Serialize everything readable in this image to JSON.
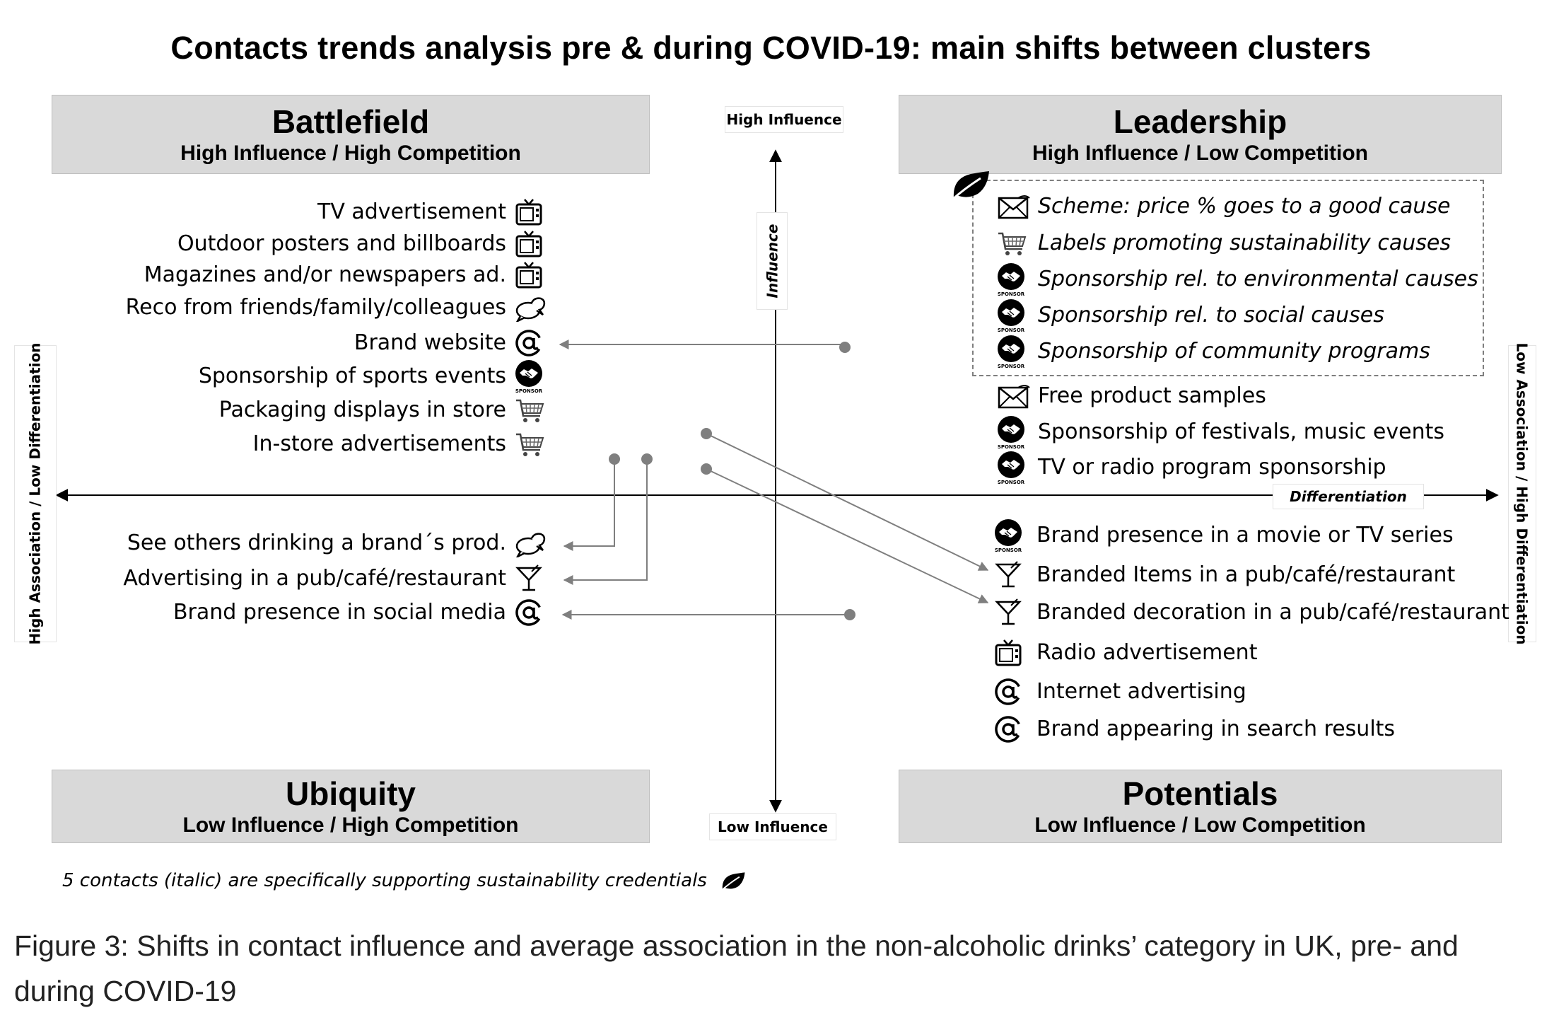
{
  "title": "Contacts trends analysis pre & during COVID-19: main shifts between clusters",
  "quadrants": {
    "battlefield": {
      "name": "Battlefield",
      "subtitle": "High Influence  / High Competition"
    },
    "leadership": {
      "name": "Leadership",
      "subtitle": "High Influence / Low Competition"
    },
    "ubiquity": {
      "name": "Ubiquity",
      "subtitle": "Low Influence  / High Competition"
    },
    "potentials": {
      "name": "Potentials",
      "subtitle": "Low Influence / Low Competition"
    }
  },
  "axes": {
    "top": "High Influence",
    "bottom": "Low Influence",
    "vertical": "Influence",
    "horizontal": "Differentiation",
    "left": "High Association / Low Differentiation",
    "right": "Low Association / High Differentiation"
  },
  "left_top_items": [
    {
      "label": "TV advertisement",
      "icon": "tv-icon"
    },
    {
      "label": "Outdoor posters and billboards",
      "icon": "tv-icon"
    },
    {
      "label": "Magazines and/or newspapers ad.",
      "icon": "tv-icon"
    },
    {
      "label": "Reco from friends/family/colleagues",
      "icon": "speech-bubbles-icon"
    },
    {
      "label": "Brand website",
      "icon": "at-icon"
    },
    {
      "label": "Sponsorship of sports events",
      "icon": "sponsor-icon"
    },
    {
      "label": "Packaging displays in store",
      "icon": "cart-icon"
    },
    {
      "label": "In-store advertisements",
      "icon": "cart-icon"
    }
  ],
  "left_bottom_items": [
    {
      "label": "See others drinking a brand´s prod.",
      "icon": "speech-bubbles-icon"
    },
    {
      "label": "Advertising in a pub/café/restaurant",
      "icon": "cocktail-icon"
    },
    {
      "label": "Brand presence in social media",
      "icon": "at-icon"
    }
  ],
  "right_top_sustainable": [
    {
      "label": "Scheme: price % goes to a good cause",
      "icon": "envelope-icon"
    },
    {
      "label": "Labels promoting sustainability causes",
      "icon": "cart-icon"
    },
    {
      "label": "Sponsorship rel. to environmental causes",
      "icon": "sponsor-icon"
    },
    {
      "label": "Sponsorship rel. to social causes",
      "icon": "sponsor-icon"
    },
    {
      "label": "Sponsorship of community programs",
      "icon": "sponsor-icon"
    }
  ],
  "right_top_items": [
    {
      "label": "Free product samples",
      "icon": "envelope-icon"
    },
    {
      "label": "Sponsorship of festivals, music events",
      "icon": "sponsor-icon"
    },
    {
      "label": "TV or radio program sponsorship",
      "icon": "sponsor-icon"
    }
  ],
  "right_bottom_items": [
    {
      "label": "Brand presence in a movie or TV series",
      "icon": "sponsor-icon"
    },
    {
      "label": "Branded Items in a pub/café/restaurant",
      "icon": "cocktail-icon"
    },
    {
      "label": "Branded decoration in a pub/café/restaurant",
      "icon": "cocktail-icon"
    },
    {
      "label": "Radio advertisement",
      "icon": "tv-icon"
    },
    {
      "label": "Internet advertising",
      "icon": "at-icon"
    },
    {
      "label": "Brand appearing in search results",
      "icon": "at-icon"
    }
  ],
  "sponsor_text": "SPONSOR",
  "leaf_icon": "leaf-icon",
  "footnote": "5 contacts (italic) are specifically supporting sustainability credentials",
  "caption": "Figure 3: Shifts in contact influence and average association in the non-alcoholic drinks’ category in UK, pre- and during COVID-19"
}
